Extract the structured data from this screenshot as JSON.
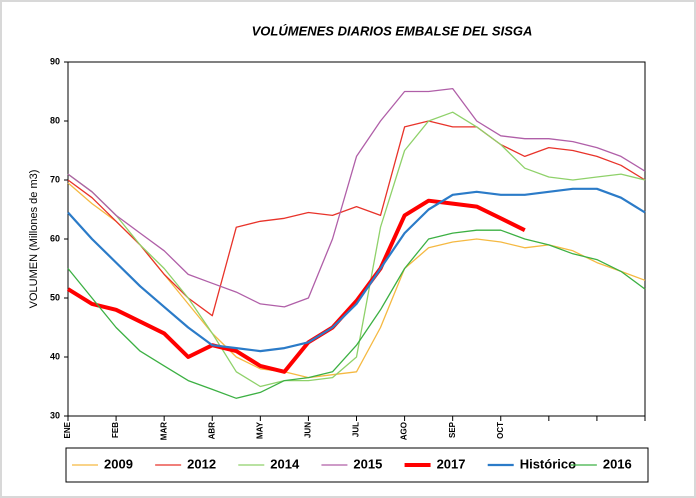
{
  "chart_data": {
    "type": "line",
    "title": "VOLÚMENES DIARIOS EMBALSE DEL SISGA",
    "y_label": "VOLUMEN (Millones de m3)",
    "categories": [
      "ENE",
      null,
      "FEB",
      null,
      "MAR",
      null,
      "ABR",
      null,
      "MAY",
      null,
      "JUN",
      null,
      "JUL",
      null,
      "AGO",
      null,
      "SEP",
      null,
      "OCT",
      null,
      null,
      null,
      null,
      null,
      null
    ],
    "ylim": [
      30,
      90
    ],
    "yticks": [
      30,
      40,
      50,
      60,
      70,
      80,
      90
    ],
    "grid": false,
    "legend": "bottom",
    "series": [
      {
        "name": "2009",
        "color": "#f5b942",
        "line_width": 1.3,
        "values": [
          69.5,
          66,
          63,
          59,
          54,
          49,
          44,
          40,
          38,
          37.5,
          36.5,
          37,
          37.5,
          45,
          55,
          58.5,
          59.5,
          60,
          59.5,
          58.5,
          59,
          58,
          56,
          54.5,
          53
        ]
      },
      {
        "name": "2012",
        "color": "#e8332a",
        "line_width": 1.3,
        "values": [
          70,
          67,
          63,
          59,
          54,
          50,
          47,
          62,
          63,
          63.5,
          64.5,
          64,
          65.5,
          64,
          79,
          80,
          79,
          79,
          76,
          74,
          75.5,
          75,
          74,
          72.5,
          70
        ]
      },
      {
        "name": "2014",
        "color": "#8fd16a",
        "line_width": 1.3,
        "values": [
          71,
          68,
          64,
          59,
          55,
          50,
          44,
          37.5,
          35,
          36,
          36,
          36.5,
          40,
          62,
          75,
          80,
          81.5,
          79,
          76,
          72,
          70.5,
          70,
          70.5,
          71,
          70
        ]
      },
      {
        "name": "2015",
        "color": "#b05fa8",
        "line_width": 1.3,
        "values": [
          71,
          68,
          64,
          61,
          58,
          54,
          52.5,
          51,
          49,
          48.5,
          50,
          60,
          74,
          80,
          85,
          85,
          85.5,
          80,
          77.5,
          77,
          77,
          76.5,
          75.5,
          74,
          71.5
        ]
      },
      {
        "name": "2017",
        "color": "#ff0000",
        "line_width": 4,
        "values": [
          51.5,
          49,
          48,
          46,
          44,
          40,
          42,
          41,
          38.5,
          37.5,
          42.5,
          45,
          49.5,
          55,
          64,
          66.5,
          66,
          65.5,
          63.5,
          61.5,
          null,
          null,
          null,
          null,
          null
        ]
      },
      {
        "name": "Histórico",
        "color": "#2b7bc8",
        "line_width": 2.2,
        "values": [
          64.5,
          60,
          56,
          52,
          48.5,
          45,
          42,
          41.5,
          41,
          41.5,
          42.5,
          45,
          49,
          55,
          61,
          65,
          67.5,
          68,
          67.5,
          67.5,
          68,
          68.5,
          68.5,
          67,
          64.5
        ]
      },
      {
        "name": "2016",
        "color": "#3cb043",
        "line_width": 1.3,
        "values": [
          55,
          50,
          45,
          41,
          38.5,
          36,
          34.5,
          33,
          34,
          36,
          36.5,
          37.5,
          42,
          48,
          55,
          60,
          61,
          61.5,
          61.5,
          60,
          59,
          57.5,
          56.5,
          54.5,
          51.5
        ]
      }
    ]
  }
}
